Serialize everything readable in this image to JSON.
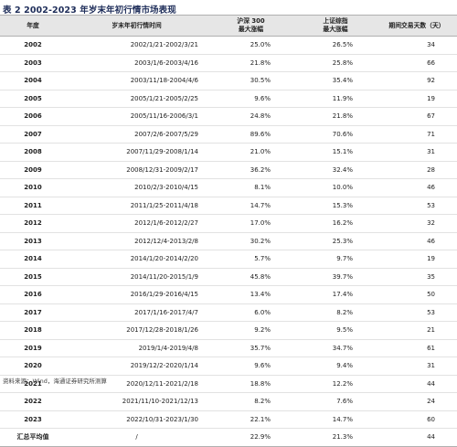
{
  "title": "表 2  2002-2023 年岁末年初行情市场表现",
  "headers": {
    "year": "年度",
    "period": "岁末年初行情时间",
    "hs300_line1": "沪深 300",
    "hs300_line2": "最大涨幅",
    "sh_line1": "上证综指",
    "sh_line2": "最大涨幅",
    "days": "期间交易天数（天）"
  },
  "rows": [
    {
      "year": "2002",
      "period": "2002/1/21-2002/3/21",
      "hs300": "25.0%",
      "sh": "26.5%",
      "days": "34"
    },
    {
      "year": "2003",
      "period": "2003/1/6-2003/4/16",
      "hs300": "21.8%",
      "sh": "25.8%",
      "days": "66"
    },
    {
      "year": "2004",
      "period": "2003/11/18-2004/4/6",
      "hs300": "30.5%",
      "sh": "35.4%",
      "days": "92"
    },
    {
      "year": "2005",
      "period": "2005/1/21-2005/2/25",
      "hs300": "9.6%",
      "sh": "11.9%",
      "days": "19"
    },
    {
      "year": "2006",
      "period": "2005/11/16-2006/3/1",
      "hs300": "24.8%",
      "sh": "21.8%",
      "days": "67"
    },
    {
      "year": "2007",
      "period": "2007/2/6-2007/5/29",
      "hs300": "89.6%",
      "sh": "70.6%",
      "days": "71"
    },
    {
      "year": "2008",
      "period": "2007/11/29-2008/1/14",
      "hs300": "21.0%",
      "sh": "15.1%",
      "days": "31"
    },
    {
      "year": "2009",
      "period": "2008/12/31-2009/2/17",
      "hs300": "36.2%",
      "sh": "32.4%",
      "days": "28"
    },
    {
      "year": "2010",
      "period": "2010/2/3-2010/4/15",
      "hs300": "8.1%",
      "sh": "10.0%",
      "days": "46"
    },
    {
      "year": "2011",
      "period": "2011/1/25-2011/4/18",
      "hs300": "14.7%",
      "sh": "15.3%",
      "days": "53"
    },
    {
      "year": "2012",
      "period": "2012/1/6-2012/2/27",
      "hs300": "17.0%",
      "sh": "16.2%",
      "days": "32"
    },
    {
      "year": "2013",
      "period": "2012/12/4-2013/2/8",
      "hs300": "30.2%",
      "sh": "25.3%",
      "days": "46"
    },
    {
      "year": "2014",
      "period": "2014/1/20-2014/2/20",
      "hs300": "5.7%",
      "sh": "9.7%",
      "days": "19"
    },
    {
      "year": "2015",
      "period": "2014/11/20-2015/1/9",
      "hs300": "45.8%",
      "sh": "39.7%",
      "days": "35"
    },
    {
      "year": "2016",
      "period": "2016/1/29-2016/4/15",
      "hs300": "13.4%",
      "sh": "17.4%",
      "days": "50"
    },
    {
      "year": "2017",
      "period": "2017/1/16-2017/4/7",
      "hs300": "6.0%",
      "sh": "8.2%",
      "days": "53"
    },
    {
      "year": "2018",
      "period": "2017/12/28-2018/1/26",
      "hs300": "9.2%",
      "sh": "9.5%",
      "days": "21"
    },
    {
      "year": "2019",
      "period": "2019/1/4-2019/4/8",
      "hs300": "35.7%",
      "sh": "34.7%",
      "days": "61"
    },
    {
      "year": "2020",
      "period": "2019/12/2-2020/1/14",
      "hs300": "9.6%",
      "sh": "9.4%",
      "days": "31"
    },
    {
      "year": "2021",
      "period": "2020/12/11-2021/2/18",
      "hs300": "18.8%",
      "sh": "12.2%",
      "days": "44"
    },
    {
      "year": "2022",
      "period": "2021/11/10-2021/12/13",
      "hs300": "8.2%",
      "sh": "7.6%",
      "days": "24"
    },
    {
      "year": "2023",
      "period": "2022/10/31-2023/1/30",
      "hs300": "22.1%",
      "sh": "14.7%",
      "days": "60"
    }
  ],
  "average": {
    "year": "汇总平均值",
    "period": "/",
    "hs300": "22.9%",
    "sh": "21.3%",
    "days": "44"
  },
  "source": "资料来源：Wind，海通证券研究所测算"
}
